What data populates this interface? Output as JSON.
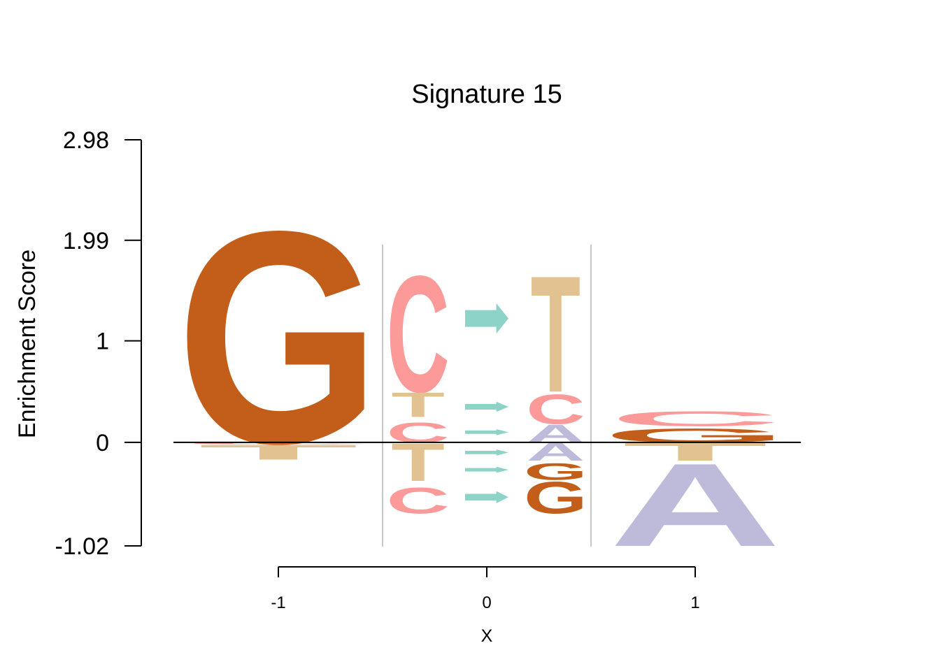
{
  "chart_data": {
    "type": "sequence-logo",
    "title": "Signature 15",
    "xlabel": "X",
    "ylabel": "Enrichment Score",
    "y_ticks": [
      "2.98",
      "1.99",
      "1",
      "0",
      "-1.02"
    ],
    "y_tick_values": [
      2.98,
      1.99,
      1,
      0,
      -1.02
    ],
    "ylim": [
      -1.02,
      2.98
    ],
    "x_ticks": [
      "-1",
      "0",
      "1"
    ],
    "x_tick_values": [
      -1,
      0,
      1
    ],
    "xlim": [
      -1.5,
      1.5
    ],
    "colors": {
      "A": "#bebada",
      "C": "#fb9a99",
      "G": "#c25e19",
      "T": "#e3c292",
      "arrow": "#8dd3c7",
      "baseline": "#000000",
      "separator": "#c8c8c8"
    },
    "positions": [
      {
        "x": -1,
        "letters": [
          {
            "char": "G",
            "y0": 0.0,
            "y1": 2.15
          },
          {
            "char": "C",
            "y0": -0.02,
            "y1": 0.0
          },
          {
            "char": "T",
            "y0": -0.17,
            "y1": -0.02
          }
        ]
      },
      {
        "x": -0.33,
        "letters": [
          {
            "char": "C",
            "y0": 0.5,
            "y1": 1.68
          },
          {
            "char": "T",
            "y0": 0.25,
            "y1": 0.5
          },
          {
            "char": "C",
            "y0": 0.0,
            "y1": 0.2
          },
          {
            "char": "T",
            "y0": -0.38,
            "y1": 0.0
          },
          {
            "char": "C",
            "y0": -0.7,
            "y1": -0.44
          }
        ]
      },
      {
        "x": 0.0,
        "letters": [
          {
            "char": "ARROW",
            "y0": 1.07,
            "y1": 1.37
          },
          {
            "char": "ARROW",
            "y0": 0.3,
            "y1": 0.4
          },
          {
            "char": "ARROW",
            "y0": 0.07,
            "y1": 0.13
          },
          {
            "char": "ARROW",
            "y0": -0.13,
            "y1": -0.07
          },
          {
            "char": "ARROW",
            "y0": -0.3,
            "y1": -0.24
          },
          {
            "char": "ARROW",
            "y0": -0.6,
            "y1": -0.48
          }
        ]
      },
      {
        "x": 0.33,
        "letters": [
          {
            "char": "T",
            "y0": 0.5,
            "y1": 1.68
          },
          {
            "char": "C",
            "y0": 0.18,
            "y1": 0.48
          },
          {
            "char": "A",
            "y0": 0.0,
            "y1": 0.18
          },
          {
            "char": "A",
            "y0": -0.18,
            "y1": 0.0
          },
          {
            "char": "G",
            "y0": -0.37,
            "y1": -0.2
          },
          {
            "char": "G",
            "y0": -0.7,
            "y1": -0.38
          }
        ]
      },
      {
        "x": 1,
        "letters": [
          {
            "char": "C",
            "y0": 0.16,
            "y1": 0.31
          },
          {
            "char": "G",
            "y0": 0.0,
            "y1": 0.14
          },
          {
            "char": "T",
            "y0": -0.18,
            "y1": 0.0
          },
          {
            "char": "A",
            "y0": -1.02,
            "y1": -0.18
          }
        ]
      }
    ]
  }
}
